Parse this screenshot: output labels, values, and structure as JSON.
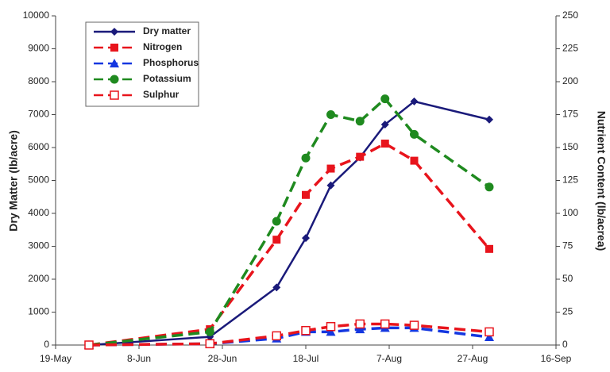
{
  "chart_data": {
    "type": "line",
    "y_label": "Dry Matter (lb/acre)",
    "y2_label": "Nutrient Content (lb/acrea)",
    "x": [
      8,
      37,
      53,
      60,
      66,
      73,
      79,
      86,
      104
    ],
    "xlim": [
      0,
      120
    ],
    "xticks": [
      {
        "value": 0,
        "label": "19-May"
      },
      {
        "value": 20,
        "label": "8-Jun"
      },
      {
        "value": 40,
        "label": "28-Jun"
      },
      {
        "value": 60,
        "label": "18-Jul"
      },
      {
        "value": 80,
        "label": "7-Aug"
      },
      {
        "value": 100,
        "label": "27-Aug"
      },
      {
        "value": 120,
        "label": "16-Sep"
      }
    ],
    "ylim": [
      0,
      10000
    ],
    "yticks": [
      0,
      1000,
      2000,
      3000,
      4000,
      5000,
      6000,
      7000,
      8000,
      9000,
      10000
    ],
    "y2lim": [
      0,
      250
    ],
    "y2ticks": [
      0,
      25,
      50,
      75,
      100,
      125,
      150,
      175,
      200,
      225,
      250
    ],
    "legend": "upper left",
    "series": [
      {
        "name": "Dry matter",
        "color": "#1a1a7a",
        "marker": "diamond",
        "dash": false,
        "values": [
          0,
          250,
          1750,
          3250,
          4850,
          5700,
          6700,
          7400,
          6850
        ]
      },
      {
        "name": "Nitrogen",
        "color": "#e8141c",
        "marker": "square",
        "dash": true,
        "axis": "y2",
        "values": [
          0,
          12,
          80,
          114,
          134,
          143,
          153,
          140,
          73
        ]
      },
      {
        "name": "Phosphorus",
        "color": "#1437e0",
        "marker": "triangle",
        "dash": true,
        "axis": "y2",
        "values": [
          0,
          1,
          5,
          10,
          10,
          12,
          13,
          13,
          6
        ]
      },
      {
        "name": "Potassium",
        "color": "#1f8a1f",
        "marker": "circle",
        "dash": true,
        "axis": "y2",
        "values": [
          0,
          10,
          94,
          142,
          175,
          170,
          187,
          160,
          120
        ]
      },
      {
        "name": "Sulphur",
        "color": "#e8141c",
        "marker": "open-square",
        "dash": true,
        "axis": "y2",
        "values": [
          0,
          1,
          7,
          11,
          14,
          16,
          16,
          15,
          10
        ]
      }
    ]
  }
}
